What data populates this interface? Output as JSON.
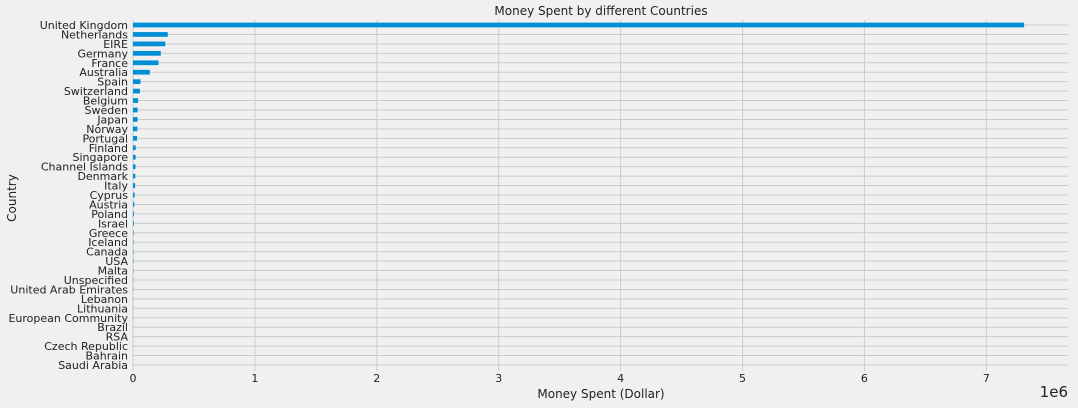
{
  "chart_data": {
    "type": "bar",
    "orientation": "horizontal",
    "title": "Money Spent by different Countries",
    "xlabel": "Money Spent (Dollar)",
    "ylabel": "Country",
    "x_offset_label": "1e6",
    "x_scale": 1000000,
    "xlim": [
      0,
      7.67
    ],
    "xticks": [
      0,
      1,
      2,
      3,
      4,
      5,
      6,
      7
    ],
    "grid": true,
    "bar_color": "#008fd5",
    "categories": [
      "United Kingdom",
      "Netherlands",
      "EIRE",
      "Germany",
      "France",
      "Australia",
      "Spain",
      "Switzerland",
      "Belgium",
      "Sweden",
      "Japan",
      "Norway",
      "Portugal",
      "Finland",
      "Singapore",
      "Channel Islands",
      "Denmark",
      "Italy",
      "Cyprus",
      "Austria",
      "Poland",
      "Israel",
      "Greece",
      "Iceland",
      "Canada",
      "USA",
      "Malta",
      "Unspecified",
      "United Arab Emirates",
      "Lebanon",
      "Lithuania",
      "European Community",
      "Brazil",
      "RSA",
      "Czech Republic",
      "Bahrain",
      "Saudi Arabia"
    ],
    "values": [
      7310000,
      285000,
      265000,
      228000,
      209000,
      138000,
      61600,
      56400,
      41200,
      38400,
      37400,
      36200,
      33400,
      22400,
      21300,
      20400,
      18900,
      17500,
      13600,
      10200,
      7400,
      7000,
      4800,
      4300,
      3700,
      3600,
      2500,
      2700,
      1900,
      1700,
      1700,
      1300,
      1100,
      1000,
      700,
      550,
      130
    ]
  }
}
